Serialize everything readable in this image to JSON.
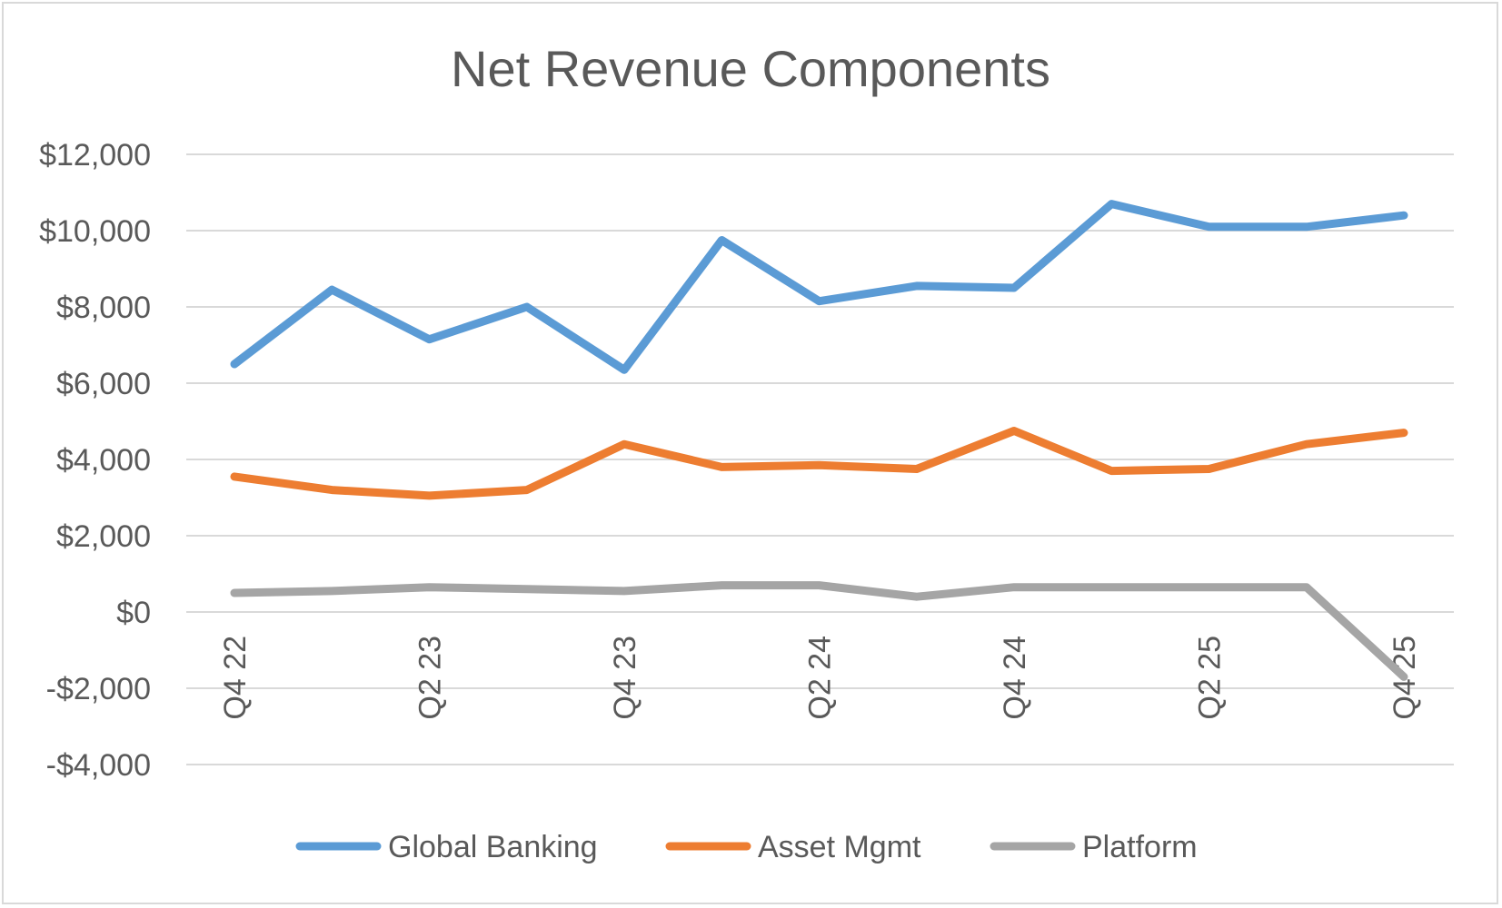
{
  "chart_data": {
    "type": "line",
    "title": "Net Revenue Components",
    "xlabel": "",
    "ylabel": "",
    "categories": [
      "Q4 22",
      "Q1 23",
      "Q2 23",
      "Q3 23",
      "Q4 23",
      "Q1 24",
      "Q2 24",
      "Q3 24",
      "Q4 24",
      "Q1 25",
      "Q2 25",
      "Q3 25",
      "Q4 25"
    ],
    "x_tick_labels": [
      "Q4 22",
      "",
      "Q2 23",
      "",
      "Q4 23",
      "",
      "Q2 24",
      "",
      "Q4 24",
      "",
      "Q2 25",
      "",
      "Q4 25"
    ],
    "y_ticks": [
      12000,
      10000,
      8000,
      6000,
      4000,
      2000,
      0,
      -2000,
      -4000
    ],
    "y_tick_labels": [
      "$12,000",
      "$10,000",
      "$8,000",
      "$6,000",
      "$4,000",
      "$2,000",
      "$0",
      "-$2,000",
      "-$4,000"
    ],
    "ylim": [
      -4000,
      12000
    ],
    "grid": true,
    "legend_position": "bottom",
    "series": [
      {
        "name": "Global Banking",
        "color": "#5b9bd5",
        "values": [
          6500,
          8450,
          7150,
          8000,
          6350,
          9750,
          8150,
          8550,
          8500,
          10700,
          10100,
          10100,
          10400
        ]
      },
      {
        "name": "Asset Mgmt",
        "color": "#ed7d31",
        "values": [
          3550,
          3200,
          3050,
          3200,
          4400,
          3800,
          3850,
          3750,
          4750,
          3700,
          3750,
          4400,
          4700
        ]
      },
      {
        "name": "Platform",
        "color": "#a5a5a5",
        "values": [
          500,
          550,
          650,
          600,
          550,
          700,
          700,
          400,
          650,
          650,
          650,
          650,
          -1700
        ]
      }
    ]
  }
}
